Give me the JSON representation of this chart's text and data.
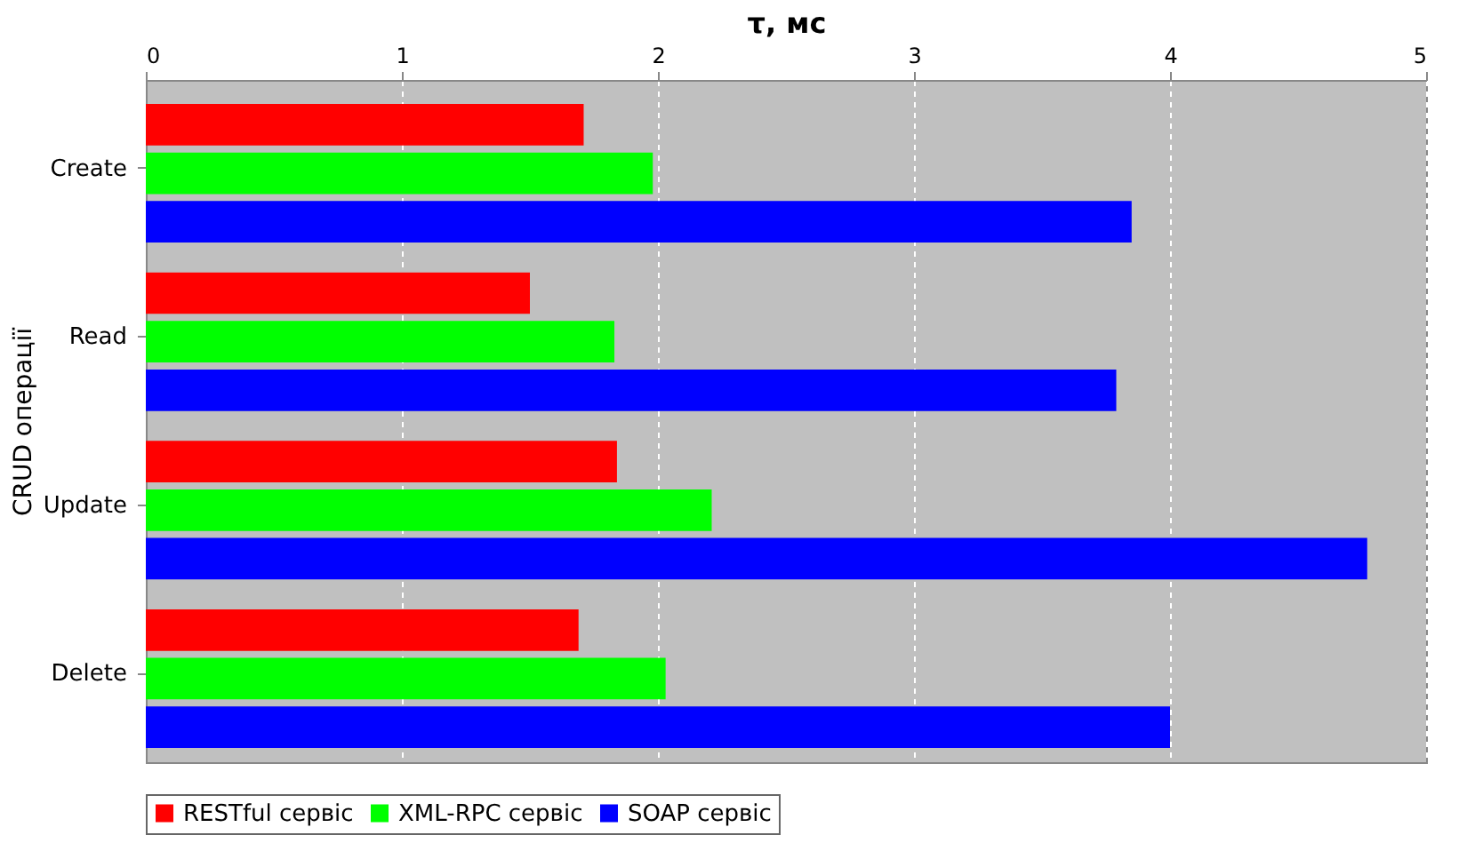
{
  "chart_data": {
    "type": "bar",
    "orientation": "horizontal",
    "xlabel": "τ, мс",
    "ylabel": "CRUD операції",
    "categories": [
      "Create",
      "Read",
      "Update",
      "Delete"
    ],
    "series": [
      {
        "name": "RESTful сервіс",
        "color": "#ff0000",
        "values": [
          1.71,
          1.5,
          1.84,
          1.69
        ]
      },
      {
        "name": "XML-RPC сервіс",
        "color": "#00ff00",
        "values": [
          1.98,
          1.83,
          2.21,
          2.03
        ]
      },
      {
        "name": "SOAP сервіс",
        "color": "#0000ff",
        "values": [
          3.85,
          3.79,
          4.77,
          4.0
        ]
      }
    ],
    "xlim": [
      0,
      5
    ],
    "xticks": [
      0,
      1,
      2,
      3,
      4,
      5
    ],
    "grid": "x",
    "legend": "bottom"
  }
}
